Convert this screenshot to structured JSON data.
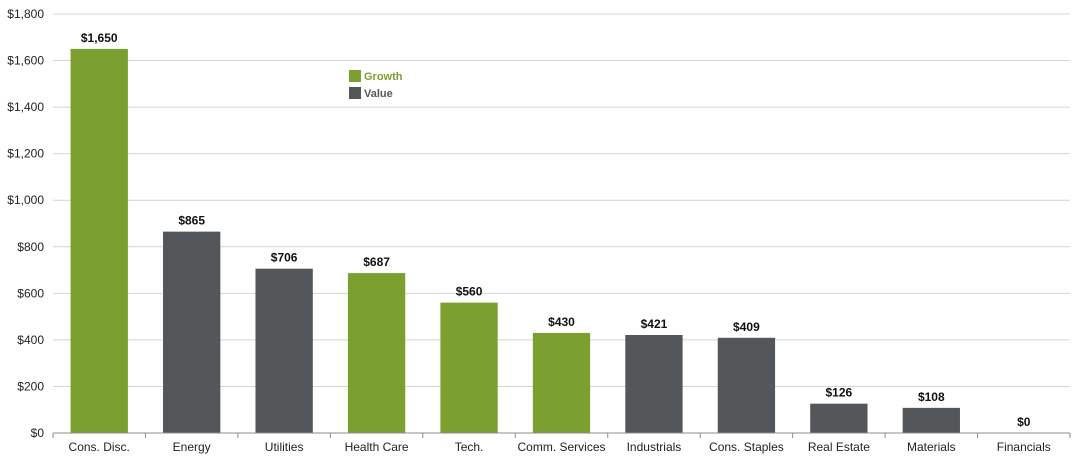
{
  "chart_data": {
    "type": "bar",
    "categories": [
      "Cons. Disc.",
      "Energy",
      "Utilities",
      "Health Care",
      "Tech.",
      "Comm. Services",
      "Industrials",
      "Cons. Staples",
      "Real Estate",
      "Materials",
      "Financials"
    ],
    "values": [
      1650,
      865,
      706,
      687,
      560,
      430,
      421,
      409,
      126,
      108,
      0
    ],
    "value_labels": [
      "$1,650",
      "$865",
      "$706",
      "$687",
      "$560",
      "$430",
      "$421",
      "$409",
      "$126",
      "$108",
      "$0"
    ],
    "groups": [
      "Growth",
      "Value",
      "Value",
      "Growth",
      "Growth",
      "Growth",
      "Value",
      "Value",
      "Value",
      "Value",
      "Value"
    ],
    "legend": [
      {
        "name": "Growth",
        "color": "#7ba030"
      },
      {
        "name": "Value",
        "color": "#545759"
      }
    ],
    "legend_position": "top-center",
    "ylim": [
      0,
      1800
    ],
    "yticks": [
      0,
      200,
      400,
      600,
      800,
      1000,
      1200,
      1400,
      1600,
      1800
    ],
    "ytick_labels": [
      "$0",
      "$200",
      "$400",
      "$600",
      "$800",
      "$1,000",
      "$1,200",
      "$1,400",
      "$1,600",
      "$1,800"
    ],
    "grid": true,
    "title": "",
    "xlabel": "",
    "ylabel": ""
  },
  "colors": {
    "gridline": "#d4d4d4",
    "axis": "#8c8c8c",
    "text": "#222222",
    "growth_text": "#7ba030",
    "value_text": "#545759"
  }
}
